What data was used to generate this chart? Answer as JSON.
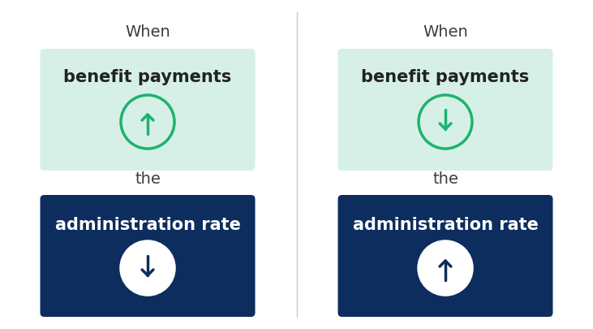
{
  "background_color": "#ffffff",
  "divider_color": "#c8c8c8",
  "when_text": "When",
  "the_text": "the",
  "benefit_text": "benefit payments",
  "admin_text": "administration rate",
  "green_bg": "#d6f0e8",
  "dark_bg": "#0d2d5e",
  "green_arrow_color": "#1db36e",
  "white_color": "#ffffff",
  "dark_text_color": "#3d3d3d",
  "when_fontsize": 14,
  "the_fontsize": 14,
  "benefit_fontsize": 15,
  "admin_fontsize": 15
}
